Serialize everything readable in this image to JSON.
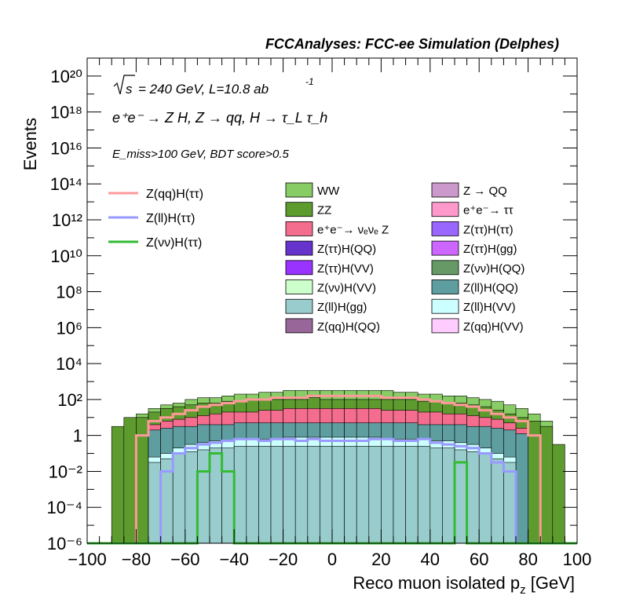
{
  "header": {
    "title": "FCCAnalyses: FCC-ee Simulation (Delphes)"
  },
  "annotations": {
    "sqrt_s": "s",
    "energy_lumi": "= 240 GeV, L=10.8 ab",
    "lumi_exp": "-1",
    "process_line": "e⁺e⁻ → Z H, Z → qq, H → τ_L τ_h",
    "cuts_line": "E_miss>100 GeV, BDT score>0.5"
  },
  "chart_data": {
    "type": "area",
    "title": "FCCAnalyses: FCC-ee Simulation (Delphes)",
    "xlabel": "Reco muon isolated p_z [GeV]",
    "ylabel": "Events",
    "xlim": [
      -100,
      100
    ],
    "ylim_log10": [
      -6,
      21
    ],
    "log_y": true,
    "grid": false,
    "x_ticks": [
      "−100",
      "−80",
      "−60",
      "−40",
      "−20",
      "0",
      "20",
      "40",
      "60",
      "80",
      "100"
    ],
    "y_ticks": [
      "10⁻⁶",
      "10⁻⁴",
      "10⁻²",
      "1",
      "10²",
      "10⁴",
      "10⁶",
      "10⁸",
      "10¹⁰",
      "10¹²",
      "10¹⁴",
      "10¹⁶",
      "10¹⁸",
      "10²⁰"
    ],
    "bin_edges_x": [
      -100,
      -95,
      -90,
      -85,
      -80,
      -75,
      -70,
      -65,
      -60,
      -55,
      -50,
      -45,
      -40,
      -35,
      -30,
      -25,
      -20,
      -15,
      -10,
      -5,
      0,
      5,
      10,
      15,
      20,
      25,
      30,
      35,
      40,
      45,
      50,
      55,
      60,
      65,
      70,
      75,
      80,
      85,
      90,
      95,
      100
    ],
    "stack_tops_log10": [
      {
        "name": "WW",
        "color": "#88cc66",
        "values": [
          -6,
          -6,
          -6,
          -6,
          1.2,
          1.5,
          1.7,
          1.8,
          2.0,
          2.1,
          2.1,
          2.2,
          2.3,
          2.3,
          2.4,
          2.4,
          2.5,
          2.5,
          2.5,
          2.5,
          2.5,
          2.5,
          2.5,
          2.5,
          2.5,
          2.4,
          2.4,
          2.3,
          2.3,
          2.2,
          2.2,
          2.1,
          2.0,
          1.9,
          1.7,
          1.5,
          1.2,
          0.8,
          -6,
          -6
        ]
      },
      {
        "name": "ZZ",
        "color": "#5e9b2f",
        "values": [
          -6,
          -6,
          0.5,
          1.0,
          1.0,
          1.3,
          1.5,
          1.6,
          1.7,
          1.8,
          1.8,
          1.9,
          1.9,
          2.0,
          2.0,
          2.0,
          2.0,
          2.0,
          2.1,
          2.0,
          2.0,
          2.0,
          2.0,
          2.0,
          2.0,
          2.0,
          2.0,
          1.9,
          1.9,
          1.8,
          1.8,
          1.7,
          1.6,
          1.4,
          1.2,
          1.0,
          0.8,
          0.5,
          -0.5,
          -6
        ]
      },
      {
        "name": "e⁺e⁻→ νₑνₑ Z",
        "color": "#f56d8e",
        "values": [
          -6,
          -6,
          -6,
          -6,
          -6,
          0.6,
          0.8,
          0.9,
          1.0,
          1.1,
          1.2,
          1.3,
          1.3,
          1.3,
          1.4,
          1.4,
          1.5,
          1.5,
          1.5,
          1.5,
          1.5,
          1.5,
          1.5,
          1.5,
          1.4,
          1.4,
          1.4,
          1.3,
          1.3,
          1.2,
          1.2,
          1.1,
          1.0,
          0.9,
          0.7,
          0.4,
          -6,
          -6,
          -6,
          -6
        ]
      },
      {
        "name": "Z(ll)H(QQ)",
        "color": "#5f9ea0",
        "values": [
          -6,
          -6,
          -6,
          -6,
          -6,
          0.3,
          0.4,
          0.5,
          0.5,
          0.6,
          0.6,
          0.6,
          0.7,
          0.7,
          0.7,
          0.7,
          0.7,
          0.7,
          0.7,
          0.7,
          0.7,
          0.7,
          0.7,
          0.7,
          0.7,
          0.7,
          0.7,
          0.6,
          0.6,
          0.6,
          0.6,
          0.5,
          0.5,
          0.4,
          0.3,
          0.1,
          -6,
          -6,
          -6,
          -6
        ]
      },
      {
        "name": "Z(ll)H(VV)",
        "color": "#ccffff",
        "values": [
          -6,
          -6,
          -6,
          -6,
          -6,
          -1.2,
          -1.0,
          -0.7,
          -0.5,
          -0.4,
          -0.3,
          -0.3,
          -0.2,
          -0.2,
          -0.2,
          -0.2,
          -0.1,
          -0.1,
          -0.1,
          -0.1,
          -0.1,
          -0.1,
          -0.1,
          -0.1,
          -0.2,
          -0.2,
          -0.2,
          -0.2,
          -0.3,
          -0.3,
          -0.4,
          -0.5,
          -0.7,
          -1.0,
          -1.2,
          -6,
          -6,
          -6,
          -6,
          -6
        ]
      },
      {
        "name": "Z(ll)H(gg)",
        "color": "#99cccc",
        "values": [
          -6,
          -6,
          -6,
          -6,
          -6,
          -1.5,
          -1.3,
          -1.0,
          -0.9,
          -0.8,
          -0.7,
          -0.7,
          -0.6,
          -0.6,
          -0.6,
          -0.6,
          -0.6,
          -0.6,
          -0.6,
          -0.6,
          -0.6,
          -0.6,
          -0.6,
          -0.6,
          -0.6,
          -0.6,
          -0.6,
          -0.6,
          -0.7,
          -0.7,
          -0.8,
          -0.9,
          -1.0,
          -1.3,
          -1.5,
          -6,
          -6,
          -6,
          -6,
          -6
        ]
      }
    ],
    "overlay_lines_log10": [
      {
        "name": "Z(qq)H(ττ)",
        "color": "#ff9999",
        "values": [
          -6,
          -6,
          -6,
          -6,
          0.0,
          0.8,
          1.0,
          1.2,
          1.4,
          1.6,
          1.7,
          1.8,
          1.9,
          2.0,
          2.0,
          2.1,
          2.1,
          2.1,
          2.2,
          2.2,
          2.2,
          2.2,
          2.2,
          2.2,
          2.1,
          2.1,
          2.1,
          2.0,
          1.9,
          1.8,
          1.7,
          1.6,
          1.4,
          1.2,
          1.0,
          0.8,
          0.0,
          -6,
          -6,
          -6
        ]
      },
      {
        "name": "Z(ll)H(ττ)",
        "color": "#9999ff",
        "values": [
          -6,
          -6,
          -6,
          -6,
          -6,
          -6,
          -2.0,
          -1.0,
          -0.7,
          -0.5,
          -0.4,
          -0.3,
          -0.2,
          -0.2,
          -0.3,
          -0.2,
          -0.2,
          -0.3,
          -0.2,
          -0.3,
          -0.3,
          -0.3,
          -0.3,
          -0.2,
          -0.2,
          -0.3,
          -0.3,
          -0.2,
          -0.4,
          -0.5,
          -0.6,
          -0.7,
          -1.0,
          -1.5,
          -2.0,
          -6,
          -6,
          -6,
          -6,
          -6
        ]
      },
      {
        "name": "Z(νν)H(ττ)",
        "color": "#33bb33",
        "values": [
          -6,
          -6,
          -6,
          -6,
          -6,
          -6,
          -6,
          -6,
          -6,
          -2.0,
          -1.0,
          -2.0,
          -6,
          -6,
          -6,
          -6,
          -6,
          -6,
          -6,
          -6,
          -6,
          -6,
          -6,
          -6,
          -6,
          -6,
          -6,
          -6,
          -6,
          -6,
          -1.5,
          -6,
          -6,
          -6,
          -6,
          -6,
          -6,
          -6,
          -6,
          -6
        ]
      }
    ]
  },
  "legend": {
    "lines": [
      {
        "label": "Z(qq)H(ττ)",
        "color": "#ff9999"
      },
      {
        "label": "Z(ll)H(ττ)",
        "color": "#9999ff"
      },
      {
        "label": "Z(νν)H(ττ)",
        "color": "#33bb33"
      }
    ],
    "fills_col1": [
      {
        "label": "WW",
        "color": "#88cc66"
      },
      {
        "label": "ZZ",
        "color": "#5e9b2f"
      },
      {
        "label": "e⁺e⁻→ νₑνₑ Z",
        "color": "#f56d8e"
      },
      {
        "label": "Z(ττ)H(QQ)",
        "color": "#6633cc"
      },
      {
        "label": "Z(ττ)H(VV)",
        "color": "#9933ff"
      },
      {
        "label": "Z(νν)H(VV)",
        "color": "#ccffcc"
      },
      {
        "label": "Z(ll)H(gg)",
        "color": "#99cccc"
      },
      {
        "label": "Z(qq)H(QQ)",
        "color": "#996699"
      }
    ],
    "fills_col2": [
      {
        "label": "Z → QQ",
        "color": "#cc99cc"
      },
      {
        "label": "e⁺e⁻→ ττ",
        "color": "#ff99cc"
      },
      {
        "label": "Z(ττ)H(ττ)",
        "color": "#9966ff"
      },
      {
        "label": "Z(ττ)H(gg)",
        "color": "#cc66ff"
      },
      {
        "label": "Z(νν)H(QQ)",
        "color": "#669966"
      },
      {
        "label": "Z(ll)H(QQ)",
        "color": "#5f9ea0"
      },
      {
        "label": "Z(ll)H(VV)",
        "color": "#ccffff"
      },
      {
        "label": "Z(qq)H(VV)",
        "color": "#ffccff"
      }
    ]
  }
}
